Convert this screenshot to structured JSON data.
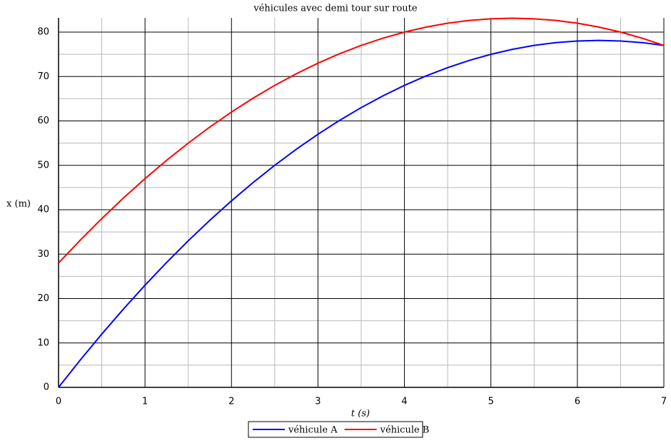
{
  "chart_data": {
    "type": "line",
    "title": "véhicules avec demi tour sur route",
    "x_label": "t (s)",
    "y_label": "x (m)",
    "x": [
      0,
      0.25,
      0.5,
      0.75,
      1,
      1.25,
      1.5,
      1.75,
      2,
      2.25,
      2.5,
      2.75,
      3,
      3.25,
      3.5,
      3.75,
      4,
      4.25,
      4.5,
      4.75,
      5,
      5.25,
      5.5,
      5.75,
      6,
      6.25,
      6.5,
      6.75,
      7
    ],
    "series": [
      {
        "name": "véhicule A",
        "color": "#0000ff",
        "values": [
          0,
          6.125,
          12,
          17.625,
          23,
          28.125,
          33,
          37.625,
          42,
          46.125,
          50,
          53.625,
          57,
          60.125,
          63,
          65.625,
          68,
          70.125,
          72,
          73.625,
          75,
          76.125,
          77,
          77.625,
          78,
          78.125,
          78,
          77.625,
          77
        ]
      },
      {
        "name": "véhicule B",
        "color": "#ff0000",
        "values": [
          28,
          33.125,
          38,
          42.625,
          47,
          51.125,
          55,
          58.625,
          62,
          65.125,
          68,
          70.625,
          73,
          75.125,
          77,
          78.625,
          80,
          81.125,
          82,
          82.625,
          83,
          83.125,
          83,
          82.625,
          82,
          81.125,
          80,
          78.625,
          77
        ]
      }
    ],
    "xlim": [
      0,
      7
    ],
    "ylim": [
      0,
      83.2
    ],
    "xticks": [
      0,
      1,
      2,
      3,
      4,
      5,
      6,
      7
    ],
    "yticks": [
      0,
      10,
      20,
      30,
      40,
      50,
      60,
      70,
      80
    ],
    "grid": true,
    "minor_grid": true,
    "legend": "bottom"
  }
}
